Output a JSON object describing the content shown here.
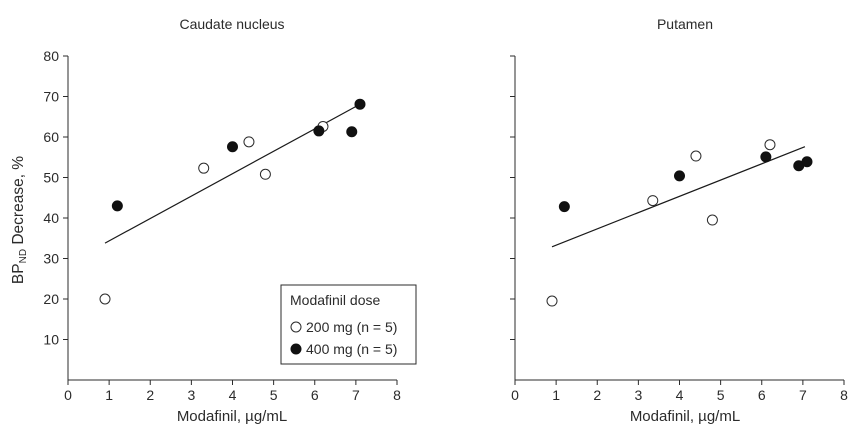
{
  "chart_data": [
    {
      "type": "scatter",
      "title": "Caudate nucleus",
      "xlabel": "Modafinil, µg/mL",
      "ylabel": {
        "main": "BP",
        "subscript": "ND",
        "rest": " Decrease, %"
      },
      "xlim": [
        0,
        8
      ],
      "ylim": [
        0,
        80
      ],
      "xticks": [
        "0",
        "1",
        "2",
        "3",
        "4",
        "5",
        "6",
        "7",
        "8"
      ],
      "yticks": [
        "10",
        "20",
        "30",
        "40",
        "50",
        "60",
        "70",
        "80"
      ],
      "grid": false,
      "series": [
        {
          "name": "200 mg (n = 5)",
          "marker": "open-circle",
          "points": [
            [
              0.9,
              20
            ],
            [
              3.3,
              52.3
            ],
            [
              4.4,
              58.8
            ],
            [
              4.8,
              50.8
            ],
            [
              6.2,
              62.6
            ]
          ]
        },
        {
          "name": "400 mg (n = 5)",
          "marker": "filled-circle",
          "points": [
            [
              1.2,
              43
            ],
            [
              4.0,
              57.6
            ],
            [
              6.1,
              61.5
            ],
            [
              6.9,
              61.3
            ],
            [
              7.1,
              68.1
            ]
          ]
        }
      ],
      "fit_line": [
        [
          0.9,
          33.8
        ],
        [
          7.05,
          67.8
        ]
      ],
      "legend": {
        "title": "Modafinil dose",
        "position": "bottom-right",
        "entries": [
          "200 mg (n = 5)",
          "400 mg (n = 5)"
        ]
      }
    },
    {
      "type": "scatter",
      "title": "Putamen",
      "xlabel": "Modafinil, µg/mL",
      "xlim": [
        0,
        8
      ],
      "ylim": [
        0,
        80
      ],
      "xticks": [
        "0",
        "1",
        "2",
        "3",
        "4",
        "5",
        "6",
        "7",
        "8"
      ],
      "grid": false,
      "series": [
        {
          "name": "200 mg (n = 5)",
          "marker": "open-circle",
          "points": [
            [
              0.9,
              19.5
            ],
            [
              3.35,
              44.3
            ],
            [
              4.4,
              55.3
            ],
            [
              4.8,
              39.5
            ],
            [
              6.2,
              58.1
            ]
          ]
        },
        {
          "name": "400 mg (n = 5)",
          "marker": "filled-circle",
          "points": [
            [
              1.2,
              42.8
            ],
            [
              4.0,
              50.4
            ],
            [
              6.1,
              55.1
            ],
            [
              6.9,
              52.9
            ],
            [
              7.1,
              53.9
            ]
          ]
        }
      ],
      "fit_line": [
        [
          0.9,
          32.9
        ],
        [
          7.05,
          57.6
        ]
      ]
    }
  ]
}
